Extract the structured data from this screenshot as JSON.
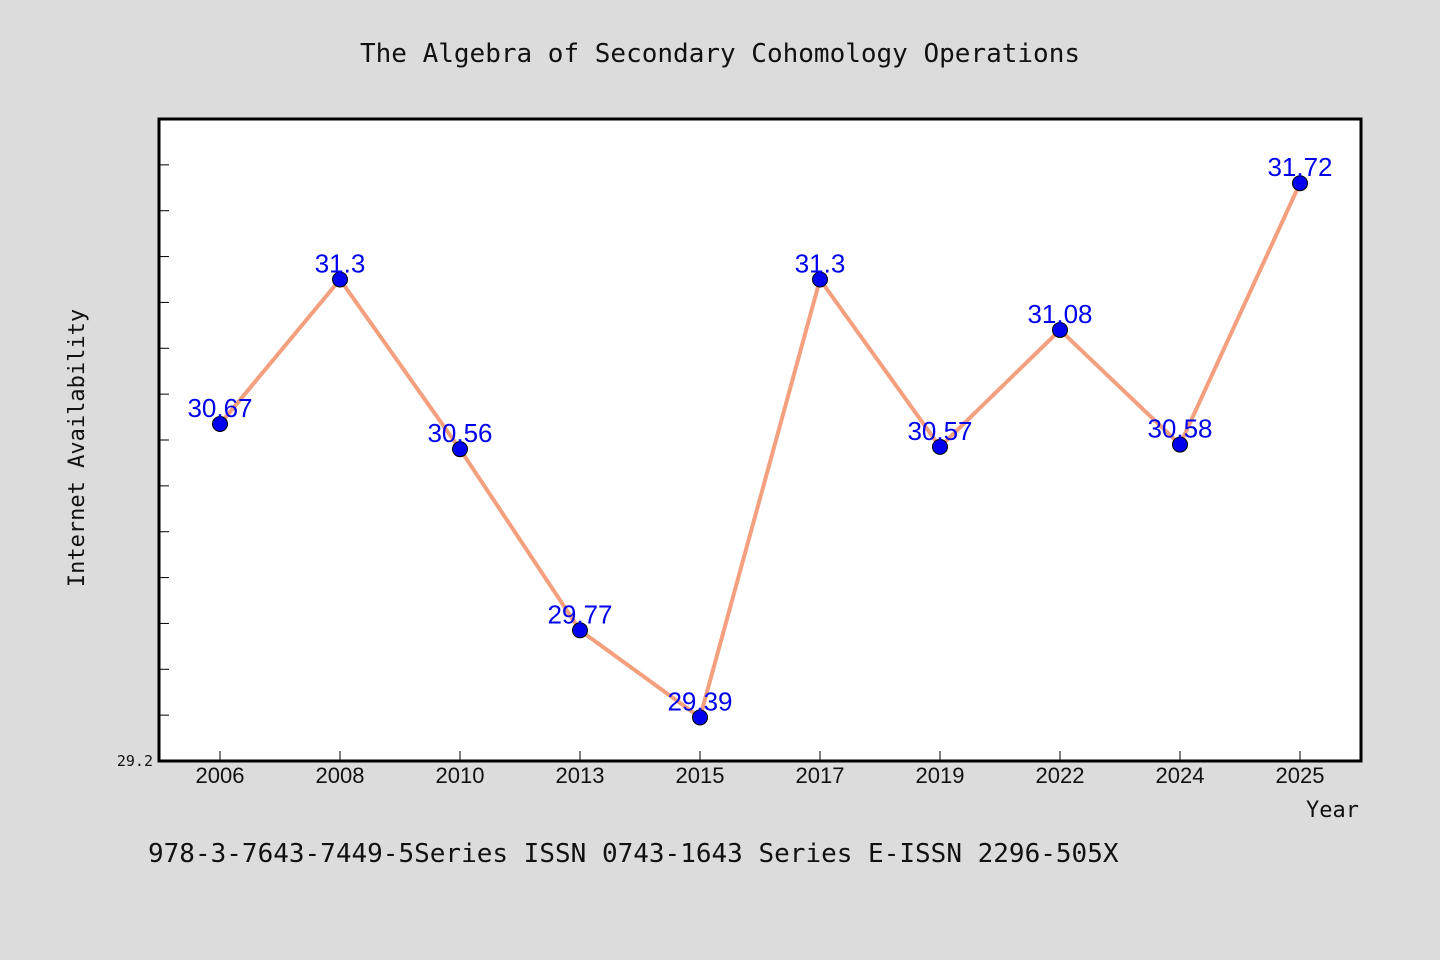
{
  "chart_data": {
    "type": "line",
    "title": "The Algebra of Secondary Cohomology Operations",
    "xlabel": "Year",
    "ylabel": "Internet Availability",
    "categories": [
      "2006",
      "2008",
      "2010",
      "2013",
      "2015",
      "2017",
      "2019",
      "2022",
      "2024",
      "2025"
    ],
    "series": [
      {
        "values": [
          30.67,
          31.3,
          30.56,
          29.77,
          29.39,
          31.3,
          30.57,
          31.08,
          30.58,
          31.72
        ],
        "labels": [
          "30.67",
          "31.3",
          "30.56",
          "29.77",
          "29.39",
          "31.3",
          "30.57",
          "31.08",
          "30.58",
          "31.72"
        ]
      }
    ],
    "yticks": [
      "29.2"
    ],
    "ylim": [
      29.2,
      32.0
    ],
    "grid": false,
    "line_color": "#f4a07e",
    "marker_color": "#0000ee",
    "label_color": "#0000ee"
  },
  "footer": "978-3-7643-7449-5Series ISSN 0743-1643 Series E-ISSN 2296-505X"
}
